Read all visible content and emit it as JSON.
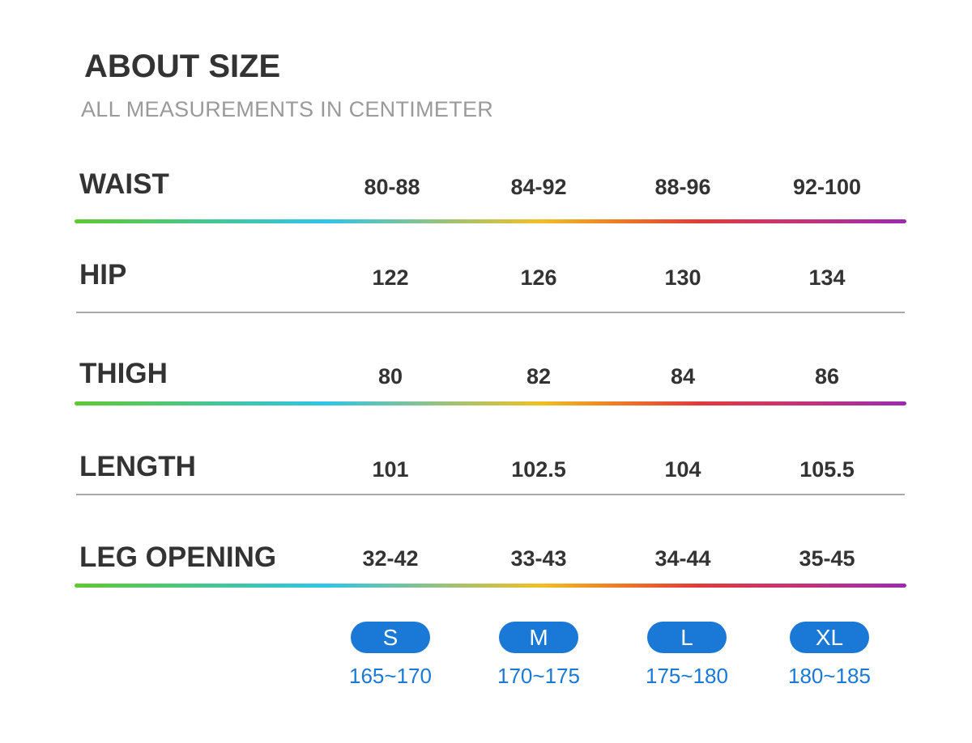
{
  "header": {
    "title": "ABOUT SIZE",
    "subtitle": "ALL MEASUREMENTS IN CENTIMETER"
  },
  "rows": [
    {
      "label": "WAIST",
      "values": [
        "80-88",
        "84-92",
        "88-96",
        "92-100"
      ]
    },
    {
      "label": "HIP",
      "values": [
        "122",
        "126",
        "130",
        "134"
      ]
    },
    {
      "label": "THIGH",
      "values": [
        "80",
        "82",
        "84",
        "86"
      ]
    },
    {
      "label": "LENGTH",
      "values": [
        "101",
        "102.5",
        "104",
        "105.5"
      ]
    },
    {
      "label": "LEG OPENING",
      "values": [
        "32-42",
        "33-43",
        "34-44",
        "35-45"
      ]
    }
  ],
  "sizes": [
    {
      "label": "S",
      "height": "165~170"
    },
    {
      "label": "M",
      "height": "170~175"
    },
    {
      "label": "L",
      "height": "175~180"
    },
    {
      "label": "XL",
      "height": "180~185"
    }
  ],
  "colors": {
    "text": "#333333",
    "subtitle": "#9a9a9a",
    "accent_blue": "#1a78d6",
    "divider_gray": "#a9a9a9"
  }
}
